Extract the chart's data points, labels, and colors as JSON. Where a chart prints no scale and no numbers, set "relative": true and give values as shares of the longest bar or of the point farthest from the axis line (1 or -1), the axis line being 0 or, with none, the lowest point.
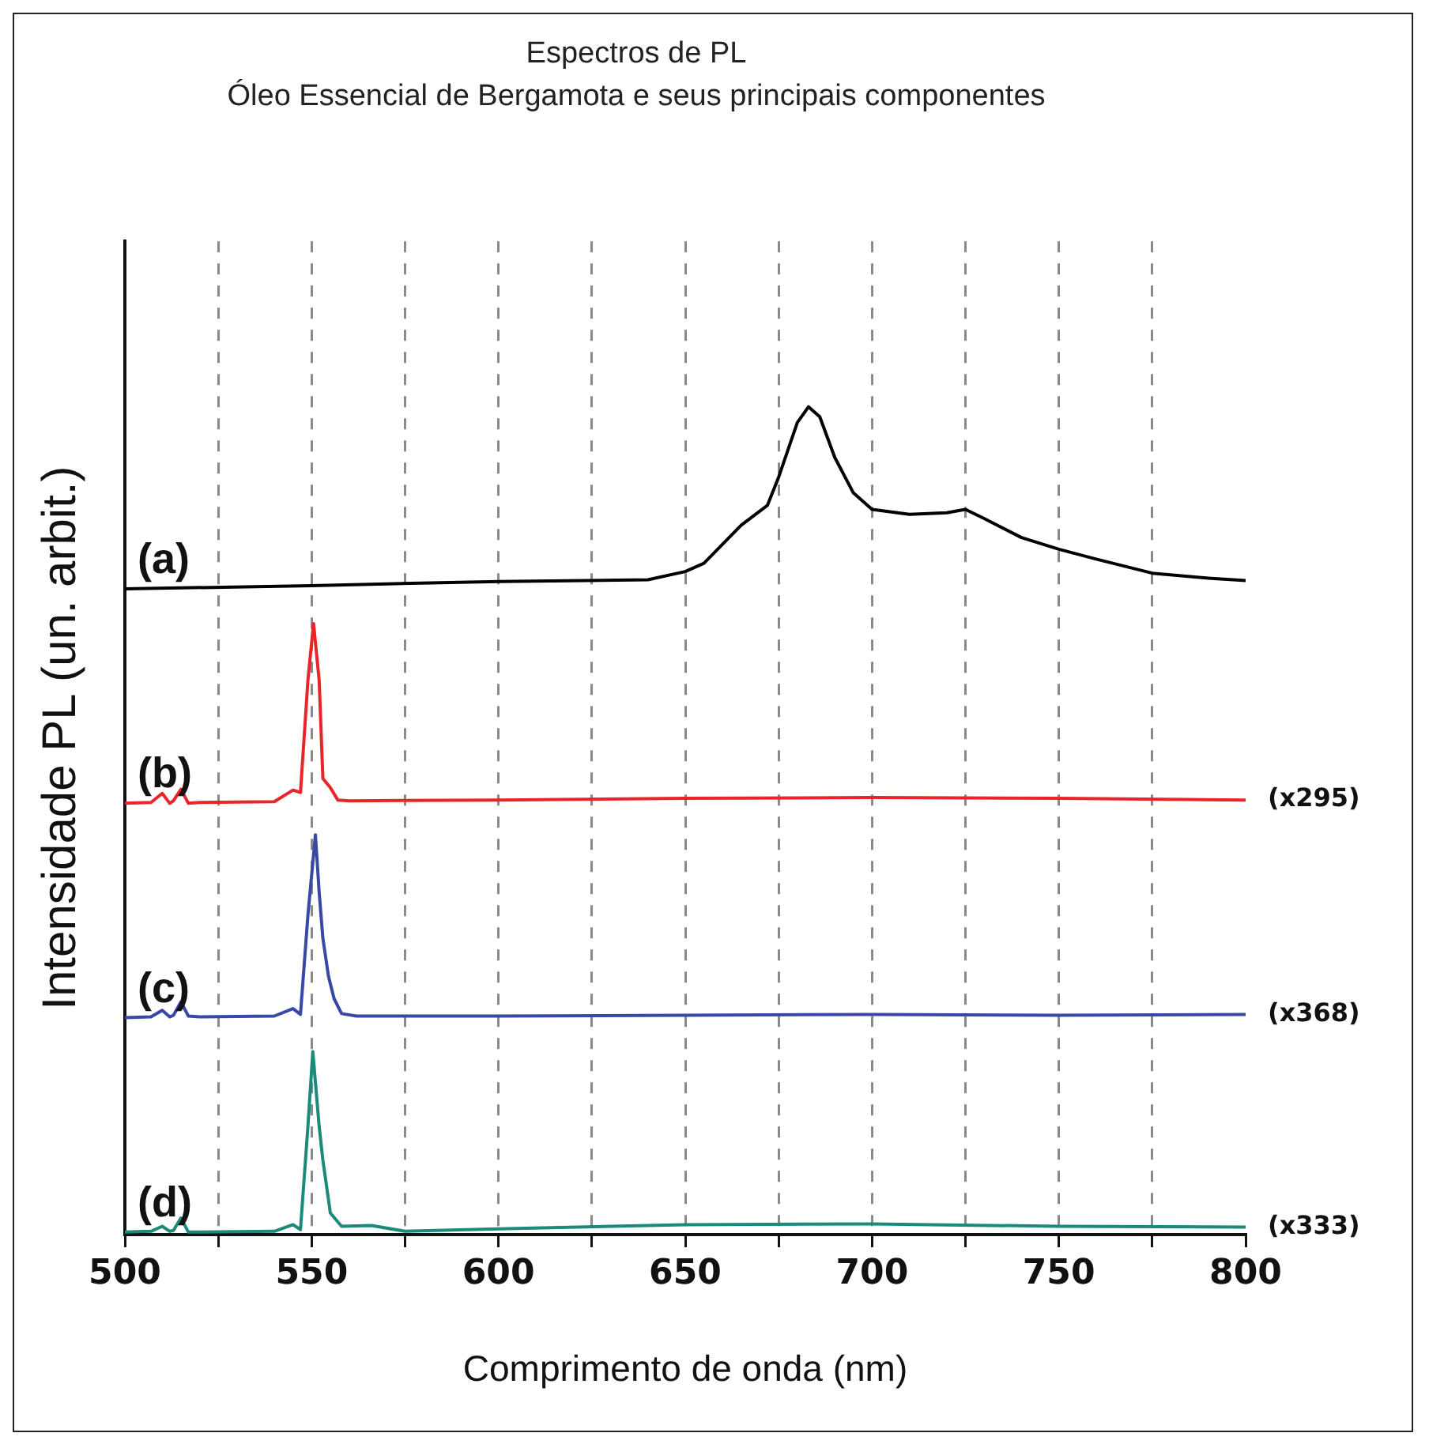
{
  "chart_data": {
    "type": "line",
    "title": "Espectros de PL",
    "subtitle": "Óleo Essencial de Bergamota e seus principais componentes",
    "xlabel": "Comprimento de onda (nm)",
    "ylabel": "Intensidade PL (un. arbit.)",
    "relative": true,
    "xlim": [
      500,
      800
    ],
    "xticks": [
      500,
      {
        "value": 525,
        "label": null
      },
      550,
      {
        "value": 575,
        "label": null
      },
      600,
      {
        "value": 625,
        "label": null
      },
      650,
      {
        "value": 675,
        "label": null
      },
      700,
      {
        "value": 725,
        "label": null
      },
      750,
      {
        "value": 775,
        "label": null
      },
      800
    ],
    "grid": "x",
    "legend": false,
    "marker": "none",
    "line_style": "solid",
    "series": [
      {
        "name": "(a)",
        "color": "#000000",
        "x": [
          500,
          550,
          600,
          640,
          650,
          655,
          665,
          672,
          675,
          680,
          683,
          686,
          690,
          695,
          700,
          710,
          720,
          725,
          730,
          740,
          750,
          760,
          775,
          790,
          800
        ],
        "values": [
          0.78,
          0.784,
          0.789,
          0.791,
          0.801,
          0.811,
          0.857,
          0.881,
          0.915,
          0.981,
          1.0,
          0.988,
          0.939,
          0.896,
          0.876,
          0.87,
          0.872,
          0.876,
          0.865,
          0.842,
          0.828,
          0.816,
          0.799,
          0.793,
          0.79
        ]
      },
      {
        "name": "(b)",
        "color": "#e8262a",
        "x": [
          500,
          507,
          510,
          512,
          513,
          515,
          517,
          520,
          540,
          545,
          547,
          549,
          550.5,
          552,
          553,
          555,
          557,
          560,
          600,
          650,
          700,
          750,
          800
        ],
        "values": [
          0.521,
          0.522,
          0.533,
          0.521,
          0.524,
          0.538,
          0.521,
          0.522,
          0.523,
          0.537,
          0.534,
          0.67,
          0.738,
          0.67,
          0.551,
          0.54,
          0.525,
          0.524,
          0.525,
          0.527,
          0.528,
          0.527,
          0.525
        ]
      },
      {
        "name": "(c)",
        "color": "#3a48a5",
        "x": [
          500,
          507,
          510,
          512,
          513,
          515,
          517,
          520,
          540,
          545,
          547,
          549,
          551,
          552,
          553,
          554.5,
          556,
          558,
          562,
          600,
          650,
          700,
          750,
          800
        ],
        "values": [
          0.262,
          0.263,
          0.271,
          0.263,
          0.265,
          0.281,
          0.264,
          0.263,
          0.264,
          0.273,
          0.266,
          0.386,
          0.483,
          0.414,
          0.358,
          0.312,
          0.285,
          0.267,
          0.264,
          0.264,
          0.265,
          0.266,
          0.265,
          0.266
        ]
      },
      {
        "name": "(d)",
        "color": "#1a8a7a",
        "x": [
          500,
          507,
          510,
          512,
          513,
          515,
          517,
          520,
          540,
          545,
          547,
          549,
          550.3,
          552,
          553,
          555,
          558,
          566,
          575,
          600,
          650,
          700,
          750,
          800
        ],
        "values": [
          0.003,
          0.004,
          0.01,
          0.004,
          0.005,
          0.02,
          0.003,
          0.003,
          0.004,
          0.012,
          0.006,
          0.131,
          0.221,
          0.131,
          0.09,
          0.026,
          0.01,
          0.011,
          0.004,
          0.007,
          0.012,
          0.013,
          0.01,
          0.009
        ]
      }
    ],
    "annotations": [
      "(x295)",
      "(x368)",
      "(x333)"
    ]
  }
}
